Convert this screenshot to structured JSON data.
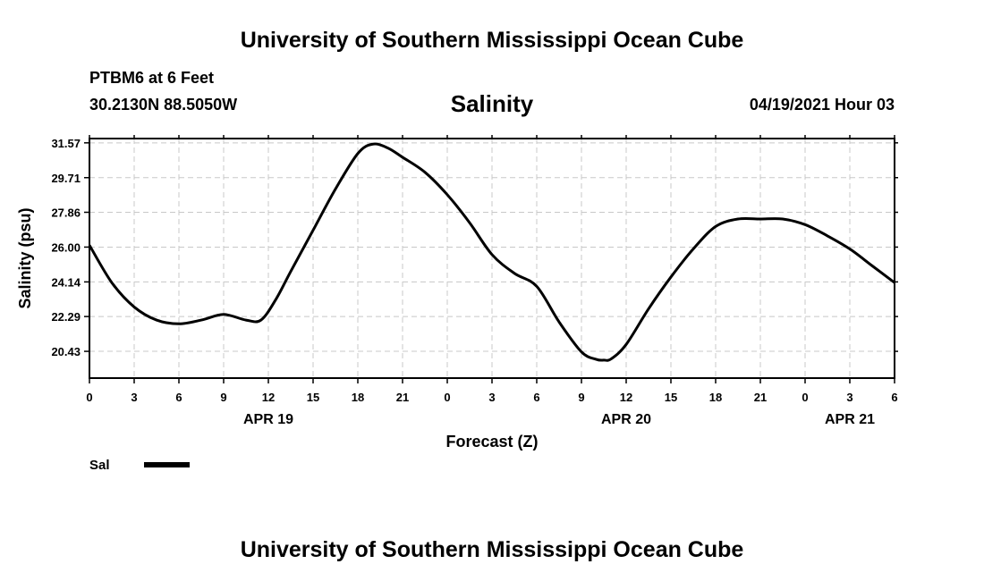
{
  "header": {
    "title": "University of Southern Mississippi Ocean Cube",
    "station": "PTBM6 at 6 Feet",
    "coords": "30.2130N  88.5050W",
    "chart_title": "Salinity",
    "issued": "04/19/2021 Hour 03"
  },
  "footer": {
    "title": "University of Southern Mississippi Ocean Cube"
  },
  "legend": {
    "label": "Sal"
  },
  "colors": {
    "line": "#000000",
    "grid": "#c8c8c8"
  },
  "chart_data": {
    "type": "line",
    "title": "Salinity",
    "xlabel": "Forecast (Z)",
    "ylabel": "Salinity (psu)",
    "grid": true,
    "legend_position": "bottom-left",
    "x_unit": "forecast hour",
    "xlim": [
      0,
      54
    ],
    "ylim": [
      19.0,
      31.8
    ],
    "yticks": [
      20.43,
      22.29,
      24.14,
      26.0,
      27.86,
      29.71,
      31.57
    ],
    "ytick_labels": [
      "20.43",
      "22.29",
      "24.14",
      "26.00",
      "27.86",
      "29.71",
      "31.57"
    ],
    "xticks": [
      0,
      3,
      6,
      9,
      12,
      15,
      18,
      21,
      24,
      27,
      30,
      33,
      36,
      39,
      42,
      45,
      48,
      51,
      54
    ],
    "xtick_labels": [
      "0",
      "3",
      "6",
      "9",
      "12",
      "15",
      "18",
      "21",
      "0",
      "3",
      "6",
      "9",
      "12",
      "15",
      "18",
      "21",
      "0",
      "3",
      "6"
    ],
    "date_labels": [
      {
        "x": 12,
        "text": "APR 19"
      },
      {
        "x": 36,
        "text": "APR 20"
      },
      {
        "x": 51,
        "text": "APR 21"
      }
    ],
    "series": [
      {
        "name": "Sal",
        "x": [
          0,
          1.5,
          3,
          4.5,
          6,
          7.5,
          9,
          10.5,
          11.5,
          12.5,
          13.5,
          15,
          16.5,
          18,
          19,
          20,
          21,
          22.5,
          24,
          25.5,
          27,
          28.5,
          30,
          31.5,
          33,
          34,
          34.5,
          35,
          36,
          37.5,
          39,
          40.5,
          42,
          43.5,
          45,
          46.5,
          48,
          49.5,
          51,
          52.5,
          54
        ],
        "y": [
          26.1,
          24.1,
          22.8,
          22.1,
          21.9,
          22.1,
          22.4,
          22.1,
          22.1,
          23.2,
          24.7,
          26.9,
          29.1,
          31.0,
          31.5,
          31.3,
          30.8,
          30.0,
          28.8,
          27.3,
          25.6,
          24.6,
          23.9,
          22.0,
          20.4,
          20.0,
          19.96,
          20.03,
          20.8,
          22.7,
          24.4,
          25.9,
          27.1,
          27.5,
          27.5,
          27.5,
          27.2,
          26.6,
          25.9,
          25.0,
          24.1
        ]
      }
    ]
  }
}
